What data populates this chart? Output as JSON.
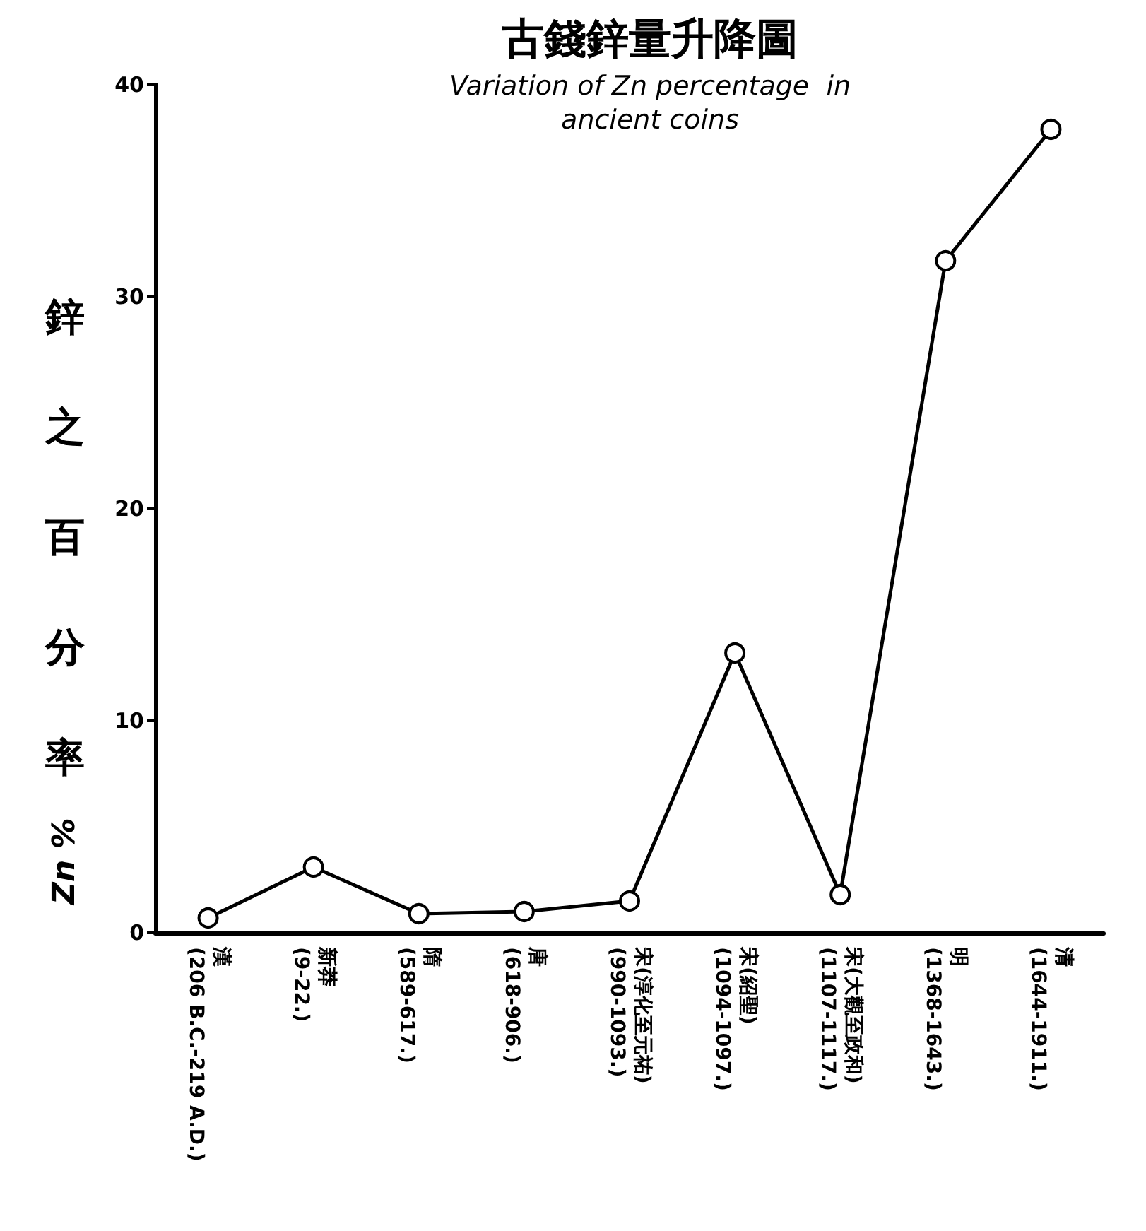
{
  "chart_data": {
    "type": "line",
    "title": "古錢鋅量升降圖",
    "subtitle": "Variation of Zn percentage  in\nancient coins",
    "ylabel": "鋅之百分率 Zn %",
    "categories": [
      "漢\n(206 B.C.-219 A.D.)",
      "新莽\n(9-22.)",
      "隋\n(589-617.)",
      "唐\n(618-906.)",
      "宋(淳化至元祐)\n(990-1093.)",
      "宋(紹聖)\n(1094-1097.)",
      "宋(大觀至政和)\n(1107-1117.)",
      "明\n(1368-1643.)",
      "清\n(1644-1911.)"
    ],
    "values": [
      0.7,
      3.1,
      0.9,
      1.0,
      1.5,
      13.2,
      1.8,
      31.7,
      37.9
    ],
    "color": "#000000",
    "ylim": [
      0,
      40
    ],
    "yticks": [
      0,
      10,
      20,
      30,
      40
    ],
    "grid": false,
    "marker": "circle",
    "line_style": "solid"
  }
}
